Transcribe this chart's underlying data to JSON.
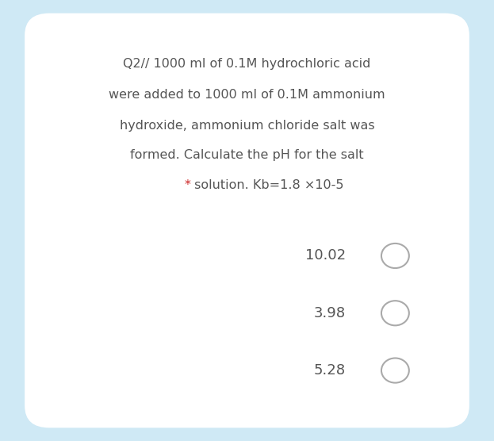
{
  "background_color": "#cfe9f5",
  "card_color": "#ffffff",
  "card_rounding": 0.05,
  "line1": "Q2// 1000 ml of 0.1M hydrochloric acid",
  "line2": "were added to 1000 ml of 0.1M ammonium",
  "line3": "hydroxide, ammonium chloride salt was",
  "line4": "formed. Calculate the pH for the salt",
  "line5_star": "*",
  "line5_rest": " solution. Kb=1.8 ×10-5",
  "star_color": "#cc2222",
  "text_color": "#555555",
  "options": [
    "10.02",
    "3.98",
    "5.28"
  ],
  "circle_color": "#aaaaaa",
  "circle_lw": 1.5,
  "font_size_main": 11.5,
  "font_size_option": 13.0,
  "font_family": "Georgia"
}
